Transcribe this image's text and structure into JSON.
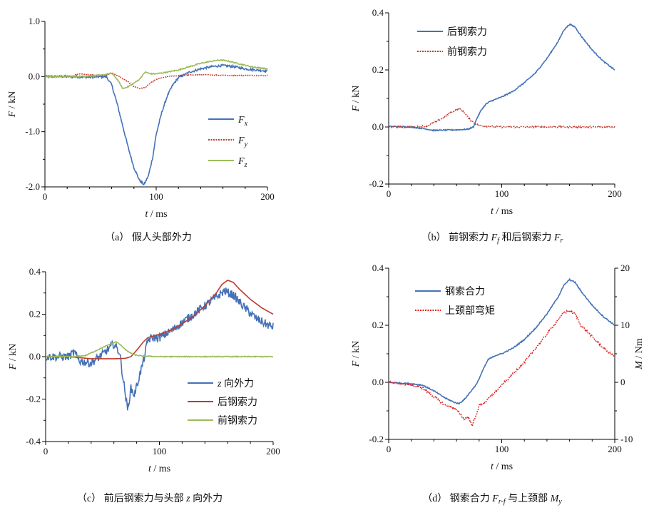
{
  "chart_data": [
    {
      "id": "a",
      "type": "line",
      "caption_prefix": "（a）",
      "caption_text": "假人头部外力",
      "xlabel": "t / ms",
      "ylabel": "F / kN",
      "xlim": [
        0,
        200
      ],
      "ylim": [
        -2.0,
        1.0
      ],
      "xticks": [
        0,
        100,
        200
      ],
      "yticks": [
        1.0,
        0.0,
        -1.0,
        -2.0
      ],
      "ytick_labels": [
        "1.0",
        "0.0",
        "-1.0",
        "-2.0"
      ],
      "series": [
        {
          "name": "Fx",
          "color": "#4472b8",
          "dash": "",
          "noise": 0.02,
          "points": [
            [
              0,
              0
            ],
            [
              20,
              0
            ],
            [
              40,
              -0.01
            ],
            [
              55,
              0.0
            ],
            [
              60,
              -0.15
            ],
            [
              65,
              -0.5
            ],
            [
              70,
              -0.9
            ],
            [
              75,
              -1.3
            ],
            [
              80,
              -1.65
            ],
            [
              85,
              -1.88
            ],
            [
              89,
              -1.96
            ],
            [
              93,
              -1.8
            ],
            [
              97,
              -1.45
            ],
            [
              100,
              -1.05
            ],
            [
              105,
              -0.65
            ],
            [
              110,
              -0.35
            ],
            [
              115,
              -0.15
            ],
            [
              120,
              -0.02
            ],
            [
              130,
              0.08
            ],
            [
              140,
              0.14
            ],
            [
              150,
              0.18
            ],
            [
              160,
              0.2
            ],
            [
              170,
              0.18
            ],
            [
              180,
              0.14
            ],
            [
              190,
              0.12
            ],
            [
              200,
              0.1
            ]
          ]
        },
        {
          "name": "Fy",
          "color": "#c0392b",
          "dash": "2,1.5",
          "noise": 0.008,
          "points": [
            [
              0,
              0
            ],
            [
              25,
              0.01
            ],
            [
              30,
              0.05
            ],
            [
              40,
              0.03
            ],
            [
              55,
              0.02
            ],
            [
              60,
              0.07
            ],
            [
              65,
              0.02
            ],
            [
              70,
              -0.04
            ],
            [
              75,
              -0.1
            ],
            [
              80,
              -0.18
            ],
            [
              85,
              -0.22
            ],
            [
              90,
              -0.2
            ],
            [
              95,
              -0.12
            ],
            [
              100,
              -0.05
            ],
            [
              110,
              0.0
            ],
            [
              130,
              0.03
            ],
            [
              150,
              0.03
            ],
            [
              170,
              0.02
            ],
            [
              190,
              0.02
            ],
            [
              200,
              0.02
            ]
          ]
        },
        {
          "name": "Fz",
          "color": "#9bbb59",
          "dash": "",
          "noise": 0.01,
          "points": [
            [
              0,
              0
            ],
            [
              30,
              0
            ],
            [
              50,
              0.02
            ],
            [
              60,
              0.06
            ],
            [
              65,
              -0.05
            ],
            [
              70,
              -0.22
            ],
            [
              75,
              -0.18
            ],
            [
              80,
              -0.12
            ],
            [
              85,
              -0.05
            ],
            [
              90,
              0.08
            ],
            [
              95,
              0.05
            ],
            [
              100,
              0.05
            ],
            [
              110,
              0.08
            ],
            [
              120,
              0.12
            ],
            [
              130,
              0.18
            ],
            [
              140,
              0.24
            ],
            [
              150,
              0.28
            ],
            [
              158,
              0.3
            ],
            [
              165,
              0.28
            ],
            [
              175,
              0.23
            ],
            [
              185,
              0.18
            ],
            [
              200,
              0.14
            ]
          ]
        }
      ],
      "legend": [
        {
          "label": "F",
          "sub": "x"
        },
        {
          "label": "F",
          "sub": "y"
        },
        {
          "label": "F",
          "sub": "z"
        }
      ]
    },
    {
      "id": "b",
      "type": "line",
      "caption_prefix": "（b）",
      "caption_text_1": "前钢索力 ",
      "caption_var_1": "F",
      "caption_sub_1": "f",
      "caption_text_2": " 和后钢索力 ",
      "caption_var_2": "F",
      "caption_sub_2": "r",
      "xlabel": "t / ms",
      "ylabel": "F / kN",
      "xlim": [
        0,
        200
      ],
      "ylim": [
        -0.2,
        0.4
      ],
      "xticks": [
        0,
        100,
        200
      ],
      "yticks": [
        0.4,
        0.2,
        0.0,
        -0.2
      ],
      "ytick_labels": [
        "0.4",
        "0.2",
        "0.0",
        "-0.2"
      ],
      "series": [
        {
          "name": "后钢索力",
          "color": "#4472b8",
          "dash": "",
          "noise": 0.002,
          "points": [
            [
              0,
              0.002
            ],
            [
              20,
              0.0
            ],
            [
              30,
              -0.005
            ],
            [
              40,
              -0.012
            ],
            [
              60,
              -0.01
            ],
            [
              70,
              -0.008
            ],
            [
              75,
              0.0
            ],
            [
              78,
              0.03
            ],
            [
              82,
              0.06
            ],
            [
              86,
              0.08
            ],
            [
              90,
              0.09
            ],
            [
              100,
              0.105
            ],
            [
              110,
              0.125
            ],
            [
              120,
              0.155
            ],
            [
              130,
              0.19
            ],
            [
              140,
              0.24
            ],
            [
              150,
              0.3
            ],
            [
              155,
              0.34
            ],
            [
              160,
              0.36
            ],
            [
              165,
              0.35
            ],
            [
              170,
              0.32
            ],
            [
              180,
              0.27
            ],
            [
              190,
              0.23
            ],
            [
              200,
              0.2
            ]
          ]
        },
        {
          "name": "前钢索力",
          "color": "#c0392b",
          "dash": "2,1.5",
          "noise": 0.003,
          "points": [
            [
              0,
              0.0
            ],
            [
              25,
              0.0
            ],
            [
              35,
              0.005
            ],
            [
              45,
              0.025
            ],
            [
              55,
              0.05
            ],
            [
              62,
              0.065
            ],
            [
              67,
              0.05
            ],
            [
              72,
              0.025
            ],
            [
              78,
              0.008
            ],
            [
              85,
              0.003
            ],
            [
              100,
              0.0
            ],
            [
              150,
              0.0
            ],
            [
              200,
              0.0
            ]
          ]
        }
      ],
      "legend": [
        {
          "label": "后钢索力"
        },
        {
          "label": "前钢索力"
        }
      ]
    },
    {
      "id": "c",
      "type": "line",
      "caption_prefix": "（c）",
      "caption_text_1": "前后钢索力与头部 ",
      "caption_var_1": "z",
      "caption_text_2": " 向外力",
      "xlabel": "t / ms",
      "ylabel": "F / kN",
      "xlim": [
        0,
        200
      ],
      "ylim": [
        -0.4,
        0.4
      ],
      "xticks": [
        0,
        100,
        200
      ],
      "yticks": [
        0.4,
        0.2,
        0.0,
        -0.2,
        -0.4
      ],
      "ytick_labels": [
        "0.4",
        "0.2",
        "0.0",
        "-0.2",
        "-0.4"
      ],
      "series": [
        {
          "name": "z 向外力",
          "color": "#4472b8",
          "dash": "",
          "noise": 0.02,
          "points": [
            [
              0,
              0.0
            ],
            [
              20,
              0.0
            ],
            [
              25,
              0.02
            ],
            [
              30,
              -0.02
            ],
            [
              40,
              -0.03
            ],
            [
              50,
              0.01
            ],
            [
              60,
              0.06
            ],
            [
              65,
              0.02
            ],
            [
              68,
              -0.1
            ],
            [
              72,
              -0.25
            ],
            [
              75,
              -0.15
            ],
            [
              78,
              -0.18
            ],
            [
              82,
              -0.1
            ],
            [
              86,
              -0.02
            ],
            [
              90,
              0.08
            ],
            [
              95,
              0.09
            ],
            [
              100,
              0.09
            ],
            [
              110,
              0.12
            ],
            [
              120,
              0.16
            ],
            [
              130,
              0.2
            ],
            [
              140,
              0.24
            ],
            [
              150,
              0.28
            ],
            [
              157,
              0.31
            ],
            [
              165,
              0.29
            ],
            [
              175,
              0.23
            ],
            [
              185,
              0.18
            ],
            [
              195,
              0.15
            ],
            [
              200,
              0.14
            ]
          ]
        },
        {
          "name": "后钢索力",
          "color": "#c0392b",
          "dash": "",
          "noise": 0.0,
          "points": [
            [
              0,
              0.0
            ],
            [
              20,
              0.0
            ],
            [
              30,
              -0.005
            ],
            [
              40,
              -0.01
            ],
            [
              60,
              -0.01
            ],
            [
              70,
              -0.008
            ],
            [
              75,
              0.0
            ],
            [
              80,
              0.03
            ],
            [
              86,
              0.07
            ],
            [
              90,
              0.09
            ],
            [
              100,
              0.105
            ],
            [
              110,
              0.125
            ],
            [
              120,
              0.155
            ],
            [
              130,
              0.19
            ],
            [
              140,
              0.24
            ],
            [
              150,
              0.3
            ],
            [
              155,
              0.34
            ],
            [
              160,
              0.36
            ],
            [
              165,
              0.35
            ],
            [
              170,
              0.32
            ],
            [
              180,
              0.27
            ],
            [
              190,
              0.23
            ],
            [
              200,
              0.2
            ]
          ]
        },
        {
          "name": "前钢索力",
          "color": "#9bbb59",
          "dash": "",
          "noise": 0.002,
          "points": [
            [
              0,
              0.0
            ],
            [
              25,
              0.0
            ],
            [
              35,
              0.005
            ],
            [
              45,
              0.03
            ],
            [
              55,
              0.055
            ],
            [
              62,
              0.07
            ],
            [
              67,
              0.05
            ],
            [
              72,
              0.025
            ],
            [
              78,
              0.008
            ],
            [
              85,
              0.003
            ],
            [
              100,
              0.0
            ],
            [
              150,
              0.0
            ],
            [
              200,
              0.0
            ]
          ]
        }
      ],
      "legend": [
        {
          "label": "z",
          "rest": " 向外力"
        },
        {
          "label": "后钢索力"
        },
        {
          "label": "前钢索力"
        }
      ]
    },
    {
      "id": "d",
      "type": "line",
      "caption_prefix": "（d）",
      "caption_text_1": "钢索合力 ",
      "caption_var_1": "F",
      "caption_sub_1": "r-f",
      "caption_text_2": " 与上颈部 ",
      "caption_var_2": "M",
      "caption_sub_2": "y",
      "xlabel": "t / ms",
      "ylabel": "F / kN",
      "y2label": "M / Nm",
      "xlim": [
        0,
        200
      ],
      "ylim": [
        -0.2,
        0.4
      ],
      "y2lim": [
        -10,
        20
      ],
      "xticks": [
        0,
        100,
        200
      ],
      "yticks": [
        0.4,
        0.2,
        0.0,
        -0.2
      ],
      "ytick_labels": [
        "0.4",
        "0.2",
        "0.0",
        "-0.2"
      ],
      "y2ticks": [
        20,
        10,
        0,
        -10
      ],
      "y2tick_labels": [
        "20",
        "10",
        "0",
        "-10"
      ],
      "series": [
        {
          "name": "钢索合力",
          "color": "#4472b8",
          "dash": "",
          "noise": 0.002,
          "axis": "left",
          "points": [
            [
              0,
              0.0
            ],
            [
              20,
              -0.005
            ],
            [
              30,
              -0.01
            ],
            [
              40,
              -0.03
            ],
            [
              50,
              -0.055
            ],
            [
              58,
              -0.07
            ],
            [
              62,
              -0.075
            ],
            [
              67,
              -0.06
            ],
            [
              72,
              -0.035
            ],
            [
              78,
              -0.005
            ],
            [
              83,
              0.04
            ],
            [
              88,
              0.08
            ],
            [
              95,
              0.095
            ],
            [
              100,
              0.1
            ],
            [
              110,
              0.12
            ],
            [
              120,
              0.15
            ],
            [
              130,
              0.19
            ],
            [
              140,
              0.24
            ],
            [
              150,
              0.3
            ],
            [
              155,
              0.34
            ],
            [
              160,
              0.36
            ],
            [
              165,
              0.35
            ],
            [
              170,
              0.32
            ],
            [
              180,
              0.27
            ],
            [
              190,
              0.23
            ],
            [
              200,
              0.2
            ]
          ]
        },
        {
          "name": "上颈部弯矩",
          "color": "#e02020",
          "dash": "2,1.5",
          "noise": 0.2,
          "axis": "right",
          "points": [
            [
              0,
              0.0
            ],
            [
              20,
              -0.5
            ],
            [
              30,
              -1.0
            ],
            [
              40,
              -2.5
            ],
            [
              50,
              -4.0
            ],
            [
              58,
              -4.5
            ],
            [
              63,
              -5.5
            ],
            [
              67,
              -6.5
            ],
            [
              70,
              -6.0
            ],
            [
              74,
              -7.5
            ],
            [
              77,
              -6.0
            ],
            [
              80,
              -4.0
            ],
            [
              85,
              -3.5
            ],
            [
              90,
              -2.5
            ],
            [
              95,
              -1.5
            ],
            [
              100,
              -0.5
            ],
            [
              110,
              1.5
            ],
            [
              120,
              3.5
            ],
            [
              130,
              6.0
            ],
            [
              140,
              8.5
            ],
            [
              150,
              11.0
            ],
            [
              155,
              12.2
            ],
            [
              160,
              12.5
            ],
            [
              165,
              12.0
            ],
            [
              170,
              10.0
            ],
            [
              180,
              8.0
            ],
            [
              190,
              6.0
            ],
            [
              200,
              4.5
            ]
          ]
        }
      ],
      "legend": [
        {
          "label": "钢索合力"
        },
        {
          "label": "上颈部弯矩"
        }
      ]
    }
  ]
}
